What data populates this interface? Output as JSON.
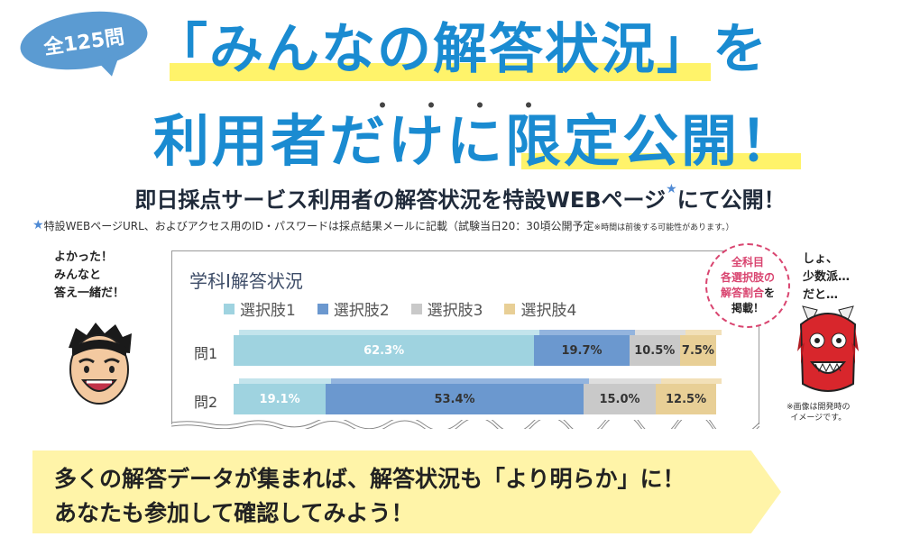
{
  "header": {
    "badge": "全125問",
    "line1": "「みんなの解答状況」を",
    "dots": "・・・・",
    "line2": "利用者だけに限定公開！"
  },
  "subtitle": {
    "main": "即日採点サービス利用者の解答状況を特設WEBページ",
    "star": "★",
    "main_end": "にて公開！",
    "note_star": "★",
    "note": "特設WEBページURL、およびアクセス用のID・パスワードは採点結果メールに記載（試験当日20：30頃公開予定",
    "note_small": "※時間は前後する可能性があります。）"
  },
  "characters": {
    "left_speech": [
      "よかった！",
      "みんなと",
      "答え一緒だ！"
    ],
    "right_speech": [
      "しょ、",
      "少数派…",
      "だと…"
    ],
    "image_note": [
      "※画像は開発時の",
      "イメージです。"
    ]
  },
  "badge_bubble": [
    "全科目",
    "各選択肢の",
    "解答割合",
    "を",
    "掲載！"
  ],
  "colors": {
    "choice1": "#9fd3e0",
    "choice2": "#6b98cf",
    "choice3": "#c9c9c9",
    "choice4": "#e8cf96",
    "title_blue": "#1a8bd1",
    "highlight": "#fff36a",
    "banner": "#fff4a8"
  },
  "chart_data": {
    "type": "bar",
    "orientation": "horizontal-stacked",
    "title": "学科Ⅰ解答状況",
    "categories": [
      "問1",
      "問2"
    ],
    "series": [
      {
        "name": "選択肢1",
        "values": [
          62.3,
          19.1
        ],
        "labels": [
          "62.3%",
          "19.1%"
        ]
      },
      {
        "name": "選択肢2",
        "values": [
          19.7,
          53.4
        ],
        "labels": [
          "19.7%",
          "53.4%"
        ]
      },
      {
        "name": "選択肢3",
        "values": [
          10.5,
          15.0
        ],
        "labels": [
          "10.5%",
          "15.0%"
        ]
      },
      {
        "name": "選択肢4",
        "values": [
          7.5,
          12.5
        ],
        "labels": [
          "7.5%",
          "12.5%"
        ]
      }
    ],
    "xlim": [
      0,
      100
    ],
    "legend": "top"
  },
  "banner": {
    "line1": "多くの解答データが集まれば、解答状況も「より明らか」に！",
    "line2": "あなたも参加して確認してみよう！"
  }
}
